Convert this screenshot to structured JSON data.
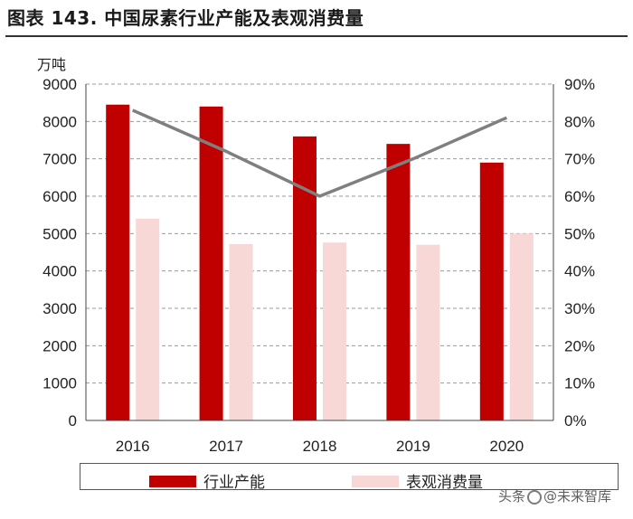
{
  "title": "图表 143. 中国尿素行业产能及表观消费量",
  "chart_data": {
    "type": "bar",
    "categories": [
      "2016",
      "2017",
      "2018",
      "2019",
      "2020"
    ],
    "series": [
      {
        "name": "行业产能",
        "type": "bar",
        "axis": "left",
        "color": "#c00000",
        "values": [
          8450,
          8400,
          7600,
          7400,
          6900
        ]
      },
      {
        "name": "表观消费量",
        "type": "bar",
        "axis": "left",
        "color": "#f8d7d7",
        "values": [
          5400,
          4720,
          4760,
          4700,
          5000
        ]
      },
      {
        "name": "",
        "type": "line",
        "axis": "right",
        "color": "#7f7f7f",
        "values": [
          0.83,
          0.72,
          0.6,
          0.7,
          0.81
        ]
      }
    ],
    "ylabel": "万吨",
    "ylim": [
      0,
      9000
    ],
    "y_ticks": [
      0,
      1000,
      2000,
      3000,
      4000,
      5000,
      6000,
      7000,
      8000,
      9000
    ],
    "y2lim": [
      0,
      0.9
    ],
    "y2_ticks": [
      "0%",
      "10%",
      "20%",
      "30%",
      "40%",
      "50%",
      "60%",
      "70%",
      "80%",
      "90%"
    ],
    "grid": "horizontal-dashed",
    "legend_position": "bottom"
  },
  "watermark": {
    "prefix": "头条",
    "handle": "@未来智库"
  }
}
